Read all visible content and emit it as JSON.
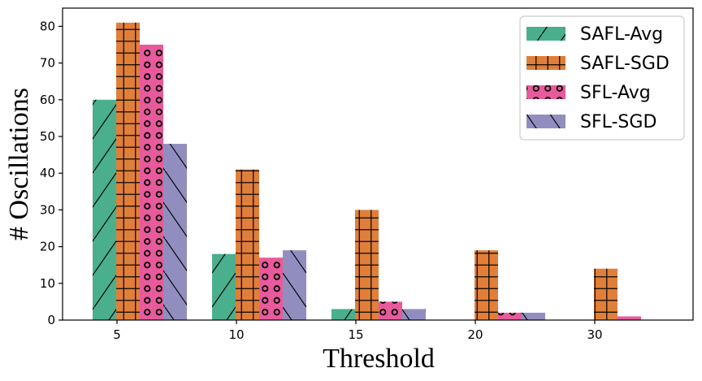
{
  "chart_data": {
    "type": "bar",
    "title": "",
    "xlabel": "Threshold",
    "ylabel": "# Oscillations",
    "categories": [
      "5",
      "10",
      "15",
      "20",
      "30"
    ],
    "ylim": [
      0,
      85
    ],
    "yticks": [
      0,
      10,
      20,
      30,
      40,
      50,
      60,
      70,
      80
    ],
    "grid": false,
    "legend_position": "top-right",
    "series": [
      {
        "name": "SAFL-Avg",
        "color": "#4aaf8c",
        "hatch": "diagonal-forward",
        "values": [
          60,
          18,
          3,
          0,
          0
        ]
      },
      {
        "name": "SAFL-SGD",
        "color": "#e07f3a",
        "hatch": "grid",
        "values": [
          81,
          41,
          30,
          19,
          14
        ]
      },
      {
        "name": "SFL-Avg",
        "color": "#e75a9b",
        "hatch": "circles",
        "values": [
          75,
          17,
          5,
          2,
          1
        ]
      },
      {
        "name": "SFL-SGD",
        "color": "#918ebf",
        "hatch": "diagonal-backward",
        "values": [
          48,
          19,
          3,
          2,
          0
        ]
      }
    ]
  }
}
